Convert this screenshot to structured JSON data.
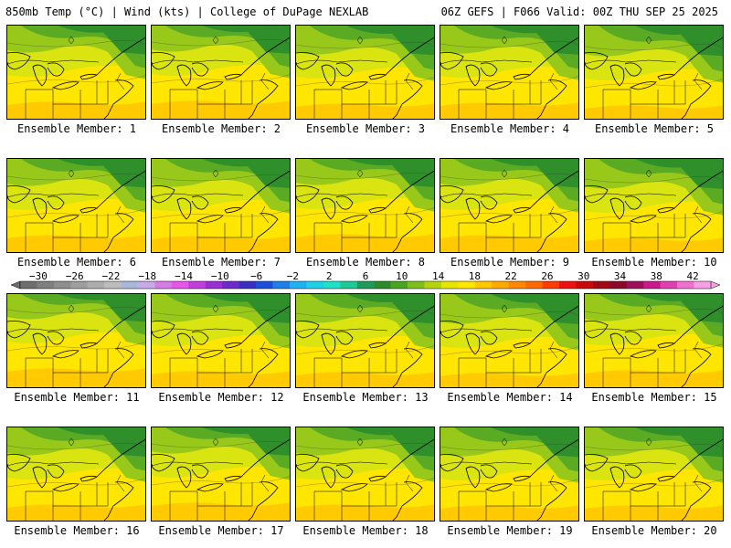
{
  "header": {
    "left": "850mb Temp (°C) | Wind (kts) | College of DuPage NEXLAB",
    "right": "06Z GEFS | F066 Valid: 00Z THU SEP 25 2025"
  },
  "members": [
    {
      "label": "Ensemble Member: 1",
      "warm": 0.5
    },
    {
      "label": "Ensemble Member: 2",
      "warm": 0.55
    },
    {
      "label": "Ensemble Member: 3",
      "warm": 0.4
    },
    {
      "label": "Ensemble Member: 4",
      "warm": 0.45
    },
    {
      "label": "Ensemble Member: 5",
      "warm": 0.3
    },
    {
      "label": "Ensemble Member: 6",
      "warm": 0.5
    },
    {
      "label": "Ensemble Member: 7",
      "warm": 0.45
    },
    {
      "label": "Ensemble Member: 8",
      "warm": 0.55
    },
    {
      "label": "Ensemble Member: 9",
      "warm": 0.5
    },
    {
      "label": "Ensemble Member: 10",
      "warm": 0.35
    },
    {
      "label": "Ensemble Member: 11",
      "warm": 0.6
    },
    {
      "label": "Ensemble Member: 12",
      "warm": 0.45
    },
    {
      "label": "Ensemble Member: 13",
      "warm": 0.4
    },
    {
      "label": "Ensemble Member: 14",
      "warm": 0.35
    },
    {
      "label": "Ensemble Member: 15",
      "warm": 0.5
    },
    {
      "label": "Ensemble Member: 16",
      "warm": 0.45
    },
    {
      "label": "Ensemble Member: 17",
      "warm": 0.55
    },
    {
      "label": "Ensemble Member: 18",
      "warm": 0.45
    },
    {
      "label": "Ensemble Member: 19",
      "warm": 0.4
    },
    {
      "label": "Ensemble Member: 20",
      "warm": 0.4
    }
  ],
  "colorbar": {
    "units": "°C",
    "min": -32,
    "max": 44,
    "step": 2,
    "tick_labels": [
      "-30",
      "-26",
      "-22",
      "-18",
      "-14",
      "-10",
      "-6",
      "-2",
      "2",
      "6",
      "10",
      "14",
      "18",
      "22",
      "26",
      "30",
      "34",
      "38",
      "42"
    ],
    "colors": [
      "#6e6e6e",
      "#7f7f7f",
      "#8e8e8e",
      "#9e9e9e",
      "#adadad",
      "#bdbdbd",
      "#a9b8d8",
      "#c9a9e6",
      "#d77be6",
      "#e855e8",
      "#c23ddd",
      "#9b2fd6",
      "#6f2acb",
      "#3a2fc0",
      "#1a4fd9",
      "#1e7fe6",
      "#1fb2f0",
      "#1fd0e8",
      "#1fe0c8",
      "#20c896",
      "#209a5a",
      "#2c8c2c",
      "#49a51f",
      "#7fbf1d",
      "#b5d40c",
      "#e6e600",
      "#ffe600",
      "#ffc800",
      "#ffa800",
      "#ff8800",
      "#ff6a00",
      "#ff3c00",
      "#ee1010",
      "#c80a0a",
      "#a00a14",
      "#8b0a2a",
      "#a0105a",
      "#c81a8c",
      "#e040b4",
      "#f070d0",
      "#f5a0e6"
    ]
  },
  "map": {
    "colors": {
      "cold": "#2f8f2a",
      "cool": "#5aaa24",
      "mild": "#97c81a",
      "warm": "#d9e410",
      "warmer": "#ffe600",
      "hot": "#ffc800"
    }
  }
}
